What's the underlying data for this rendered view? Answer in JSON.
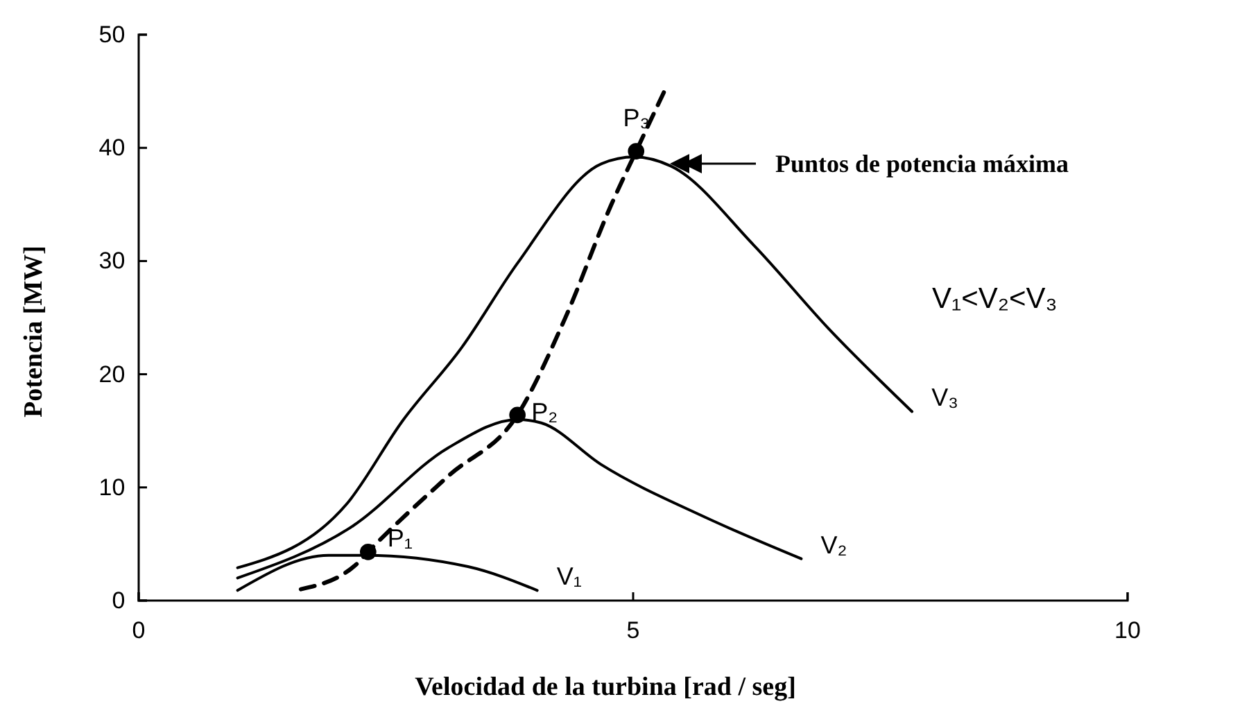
{
  "chart_data": {
    "type": "line",
    "xlabel": "Velocidad de la turbina [rad / seg]",
    "ylabel": "Potencia  [MW]",
    "xlim": [
      0,
      10
    ],
    "xticks": [
      0,
      5,
      10
    ],
    "ylim": [
      0,
      50
    ],
    "yticks": [
      0,
      10,
      20,
      30,
      40,
      50
    ],
    "grid": false,
    "series": [
      {
        "name": "V₁",
        "color": "#000000",
        "line_style": "solid",
        "marker": "none",
        "x": [
          1.0,
          1.92,
          2.29,
          3.33,
          4.03
        ],
        "values": [
          0.9,
          4.0,
          4.0,
          3.0,
          0.9
        ]
      },
      {
        "name": "V₂",
        "color": "#000000",
        "line_style": "solid",
        "marker": "none",
        "x": [
          1.0,
          2.15,
          3.13,
          3.83,
          4.07,
          4.68,
          5.72,
          6.7
        ],
        "values": [
          2.0,
          6.5,
          13.5,
          16.0,
          15.7,
          12.0,
          7.4,
          3.7
        ]
      },
      {
        "name": "V₃",
        "color": "#000000",
        "line_style": "solid",
        "marker": "none",
        "x": [
          1.0,
          2.1,
          2.67,
          3.27,
          3.83,
          4.68,
          5.01,
          5.38,
          6.22,
          6.98,
          7.82
        ],
        "values": [
          2.9,
          8.5,
          15.9,
          22.4,
          29.8,
          38.6,
          39.2,
          38.4,
          31.4,
          24.0,
          16.7
        ]
      },
      {
        "color": "#000000",
        "line_style": "dashed",
        "marker": "none",
        "x": [
          1.64,
          2.2,
          2.32,
          3.13,
          3.83,
          4.31,
          4.78,
          5.03,
          5.31
        ],
        "values": [
          1.0,
          3.2,
          4.3,
          11.0,
          16.4,
          24.9,
          35.0,
          39.7,
          44.9
        ]
      },
      {
        "type": "scatter",
        "color": "#000000",
        "marker": "circle",
        "x": [
          2.32,
          3.83,
          5.03
        ],
        "values": [
          4.3,
          16.4,
          39.7
        ]
      }
    ],
    "annotations": [
      {
        "text": "P₁",
        "x": 2.32,
        "y": 4.3
      },
      {
        "text": "P₂",
        "x": 3.83,
        "y": 16.4
      },
      {
        "text": "P₃",
        "x": 5.03,
        "y": 39.7
      },
      "Puntos de potencia máxima",
      "V₁<V₂<V₃"
    ]
  }
}
